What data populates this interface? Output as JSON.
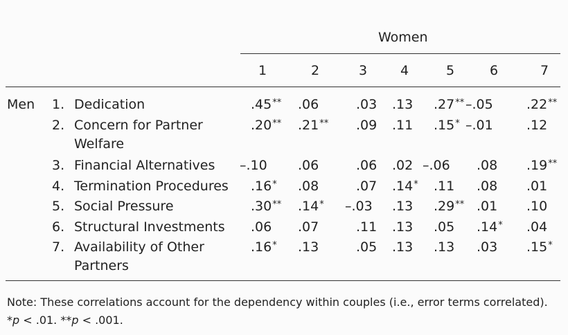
{
  "table": {
    "col_group_header": "Women",
    "row_group_header": "Men",
    "col_headers": [
      "1",
      "2",
      "3",
      "4",
      "5",
      "6",
      "7"
    ],
    "rows": [
      {
        "num": "1.",
        "label": [
          "Dedication"
        ],
        "cells": [
          {
            "v": ".45",
            "sig": "**"
          },
          {
            "v": ".06",
            "sig": ""
          },
          {
            "v": ".03",
            "sig": ""
          },
          {
            "v": ".13",
            "sig": ""
          },
          {
            "v": ".27",
            "sig": "**"
          },
          {
            "v": "–.05",
            "sig": ""
          },
          {
            "v": ".22",
            "sig": "**"
          }
        ]
      },
      {
        "num": "2.",
        "label": [
          "Concern for Partner",
          "Welfare"
        ],
        "cells": [
          {
            "v": ".20",
            "sig": "**"
          },
          {
            "v": ".21",
            "sig": "**"
          },
          {
            "v": ".09",
            "sig": ""
          },
          {
            "v": ".11",
            "sig": ""
          },
          {
            "v": ".15",
            "sig": "*"
          },
          {
            "v": "–.01",
            "sig": ""
          },
          {
            "v": ".12",
            "sig": ""
          }
        ]
      },
      {
        "num": "3.",
        "label": [
          "Financial Alternatives"
        ],
        "cells": [
          {
            "v": "–.10",
            "sig": ""
          },
          {
            "v": ".06",
            "sig": ""
          },
          {
            "v": ".06",
            "sig": ""
          },
          {
            "v": ".02",
            "sig": ""
          },
          {
            "v": "–.06",
            "sig": ""
          },
          {
            "v": ".08",
            "sig": ""
          },
          {
            "v": ".19",
            "sig": "**"
          }
        ]
      },
      {
        "num": "4.",
        "label": [
          "Termination Procedures"
        ],
        "cells": [
          {
            "v": ".16",
            "sig": "*"
          },
          {
            "v": ".08",
            "sig": ""
          },
          {
            "v": ".07",
            "sig": ""
          },
          {
            "v": ".14",
            "sig": "*"
          },
          {
            "v": ".11",
            "sig": ""
          },
          {
            "v": ".08",
            "sig": ""
          },
          {
            "v": ".01",
            "sig": ""
          }
        ]
      },
      {
        "num": "5.",
        "label": [
          "Social Pressure"
        ],
        "cells": [
          {
            "v": ".30",
            "sig": "**"
          },
          {
            "v": ".14",
            "sig": "*"
          },
          {
            "v": "–.03",
            "sig": ""
          },
          {
            "v": ".13",
            "sig": ""
          },
          {
            "v": ".29",
            "sig": "**"
          },
          {
            "v": ".01",
            "sig": ""
          },
          {
            "v": ".10",
            "sig": ""
          }
        ]
      },
      {
        "num": "6.",
        "label": [
          "Structural Investments"
        ],
        "cells": [
          {
            "v": ".06",
            "sig": ""
          },
          {
            "v": ".07",
            "sig": ""
          },
          {
            "v": ".11",
            "sig": ""
          },
          {
            "v": ".13",
            "sig": ""
          },
          {
            "v": ".05",
            "sig": ""
          },
          {
            "v": ".14",
            "sig": "*"
          },
          {
            "v": ".04",
            "sig": ""
          }
        ]
      },
      {
        "num": "7.",
        "label": [
          "Availability of Other",
          "Partners"
        ],
        "cells": [
          {
            "v": ".16",
            "sig": "*"
          },
          {
            "v": ".13",
            "sig": ""
          },
          {
            "v": ".05",
            "sig": ""
          },
          {
            "v": ".13",
            "sig": ""
          },
          {
            "v": ".13",
            "sig": ""
          },
          {
            "v": ".03",
            "sig": ""
          },
          {
            "v": ".15",
            "sig": "*"
          }
        ]
      }
    ]
  },
  "note": {
    "text": "Note: These correlations account for the dependency within couples (i.e., error terms correlated).",
    "sig1_stars": "*",
    "sig1_p": "p",
    "sig1_rest": " < .01. ",
    "sig2_stars": "**",
    "sig2_p": "p",
    "sig2_rest": " < .001."
  }
}
